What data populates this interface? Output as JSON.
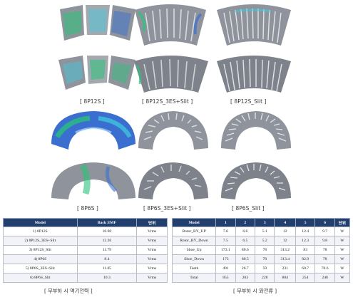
{
  "figure_labels": {
    "label_1": "[ 8P12S ]",
    "label_2": "[ 8P12S_3ES+Slit ]",
    "label_3": "[ 8P12S_Slit ]",
    "label_4": "[ 8P6S ]",
    "label_5": "[ 8P6S_3ES+Slit ]",
    "label_6": "[ 8P6S_Slit ]"
  },
  "emf_table": {
    "headers": [
      "Model",
      "Back EMF",
      "단위"
    ],
    "rows": [
      [
        "1) 8P12S",
        "10.06",
        "Vrms"
      ],
      [
        "2) 8P12S_3ES+Slit",
        "12.26",
        "Vrms"
      ],
      [
        "3) 8P12S_Slit",
        "11.79",
        "Vrms"
      ],
      [
        "4) 8P6S",
        "8.4",
        "Vrms"
      ],
      [
        "5) 8P6S_3ES+Slit",
        "11.05",
        "Vrms"
      ],
      [
        "6) 8P6S_Slit",
        "10.3",
        "Vrms"
      ]
    ],
    "caption": "[ 무부하 시 역기전력 ]"
  },
  "loss_table": {
    "headers": [
      "Model",
      "1",
      "2",
      "3",
      "4",
      "5",
      "6",
      "단위"
    ],
    "rows": [
      [
        "Rotor_BY_UP",
        "7.6",
        "6.6",
        "5.1",
        "12",
        "12.4",
        "9.7",
        "W"
      ],
      [
        "Rotor_BY_Down",
        "7.5",
        "6.5",
        "5.2",
        "12",
        "12.3",
        "9.8",
        "W"
      ],
      [
        "Shoe_Up",
        "173.1",
        "80.6",
        "78",
        "313.2",
        "83",
        "78",
        "W"
      ],
      [
        "Shoe_Down",
        "173",
        "80.5",
        "78",
        "313.4",
        "82.9",
        "78",
        "W"
      ],
      [
        "Teeth",
        "491",
        "26.7",
        "59",
        "231",
        "60.7",
        "70.6",
        "W"
      ],
      [
        "Total",
        "855",
        "203",
        "228",
        "884",
        "254",
        "248",
        "W"
      ]
    ],
    "caption": "[ 무부하 시 와전류 ]"
  },
  "colors": {
    "header_navy": "#233f6e",
    "metal_gray": "#8f949c",
    "field_blue": "#3a6fd0",
    "field_green": "#29c37a",
    "field_cyan": "#3fc9e0"
  }
}
